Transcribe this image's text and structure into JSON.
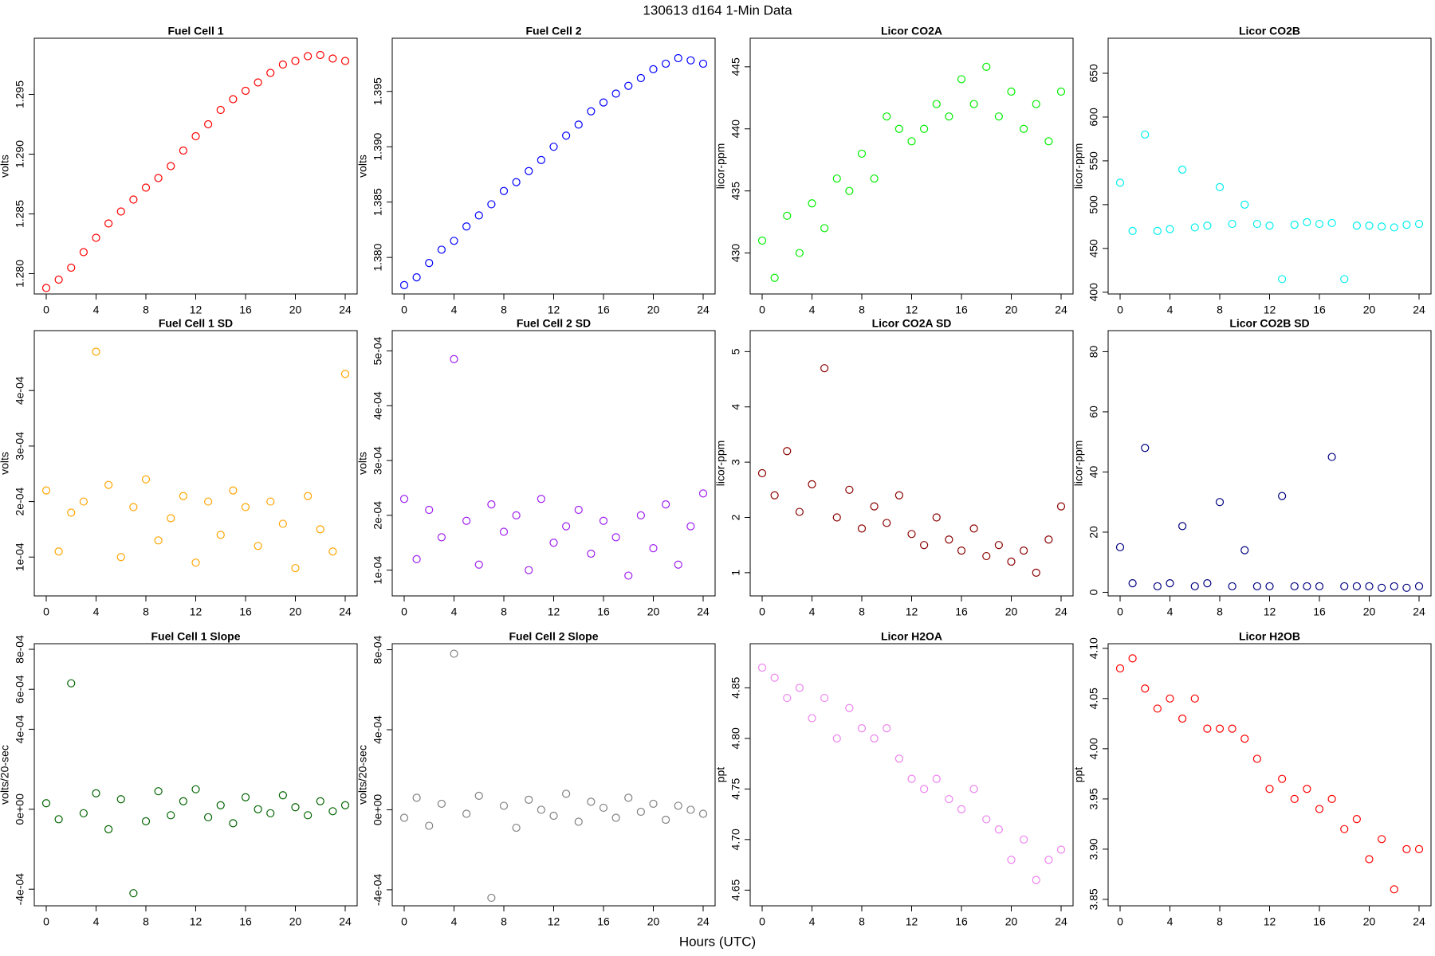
{
  "title": "130613   d164   1-Min Data",
  "x_label": "Hours (UTC)",
  "chart_data": [
    {
      "type": "scatter",
      "title": "Fuel Cell 1",
      "y_label": "volts",
      "color": "#ff0000",
      "x": [
        0,
        1,
        2,
        3,
        4,
        5,
        6,
        7,
        8,
        9,
        10,
        11,
        12,
        13,
        14,
        15,
        16,
        17,
        18,
        19,
        20,
        21,
        22,
        23,
        24
      ],
      "values": [
        1.2788,
        1.2795,
        1.2805,
        1.2818,
        1.283,
        1.2842,
        1.2852,
        1.2862,
        1.2872,
        1.288,
        1.289,
        1.2903,
        1.2915,
        1.2925,
        1.2937,
        1.2946,
        1.2953,
        1.296,
        1.2968,
        1.2975,
        1.2978,
        1.2982,
        1.2983,
        1.298,
        1.2978
      ],
      "xlim": [
        -0.96,
        24.96
      ],
      "xticks": [
        0,
        4,
        8,
        12,
        16,
        20,
        24
      ],
      "ylim": [
        1.2783,
        1.2997
      ],
      "yticks": [
        {
          "value": 1.28,
          "label": "1.280"
        },
        1.285,
        {
          "value": 1.29,
          "label": "1.290"
        },
        1.295
      ]
    },
    {
      "type": "scatter",
      "title": "Fuel Cell 2",
      "y_label": "volts",
      "color": "#0000ff",
      "x": [
        0,
        1,
        2,
        3,
        4,
        5,
        6,
        7,
        8,
        9,
        10,
        11,
        12,
        13,
        14,
        15,
        16,
        17,
        18,
        19,
        20,
        21,
        22,
        23,
        24
      ],
      "values": [
        1.3775,
        1.3782,
        1.3795,
        1.3807,
        1.3815,
        1.3828,
        1.3838,
        1.3848,
        1.386,
        1.3868,
        1.3878,
        1.3888,
        1.39,
        1.391,
        1.392,
        1.3932,
        1.394,
        1.3948,
        1.3955,
        1.3962,
        1.397,
        1.3975,
        1.398,
        1.3978,
        1.3975
      ],
      "xlim": [
        -0.96,
        24.96
      ],
      "xticks": [
        0,
        4,
        8,
        12,
        16,
        20,
        24
      ],
      "ylim": [
        1.3767,
        1.3998
      ],
      "yticks": [
        {
          "value": 1.38,
          "label": "1.380"
        },
        1.385,
        {
          "value": 1.39,
          "label": "1.390"
        },
        1.395
      ]
    },
    {
      "type": "scatter",
      "title": "Licor CO2A",
      "y_label": "licor-ppm",
      "color": "#00ee00",
      "x": [
        0,
        1,
        2,
        3,
        4,
        5,
        6,
        7,
        8,
        9,
        10,
        11,
        12,
        13,
        14,
        15,
        16,
        17,
        18,
        19,
        20,
        21,
        22,
        23,
        24
      ],
      "values": [
        431,
        428,
        433,
        430,
        434,
        432,
        436,
        435,
        438,
        436,
        441,
        440,
        439,
        440,
        442,
        441,
        444,
        442,
        445,
        441,
        443,
        440,
        442,
        439,
        443
      ],
      "xlim": [
        -0.96,
        24.96
      ],
      "xticks": [
        0,
        4,
        8,
        12,
        16,
        20,
        24
      ],
      "ylim": [
        426.7,
        447.3
      ],
      "yticks": [
        430,
        435,
        440,
        445
      ]
    },
    {
      "type": "scatter",
      "title": "Licor CO2B",
      "y_label": "licor-ppm",
      "color": "#00eeee",
      "x": [
        0,
        1,
        2,
        3,
        4,
        5,
        6,
        7,
        8,
        9,
        10,
        11,
        12,
        13,
        14,
        15,
        16,
        17,
        18,
        19,
        20,
        21,
        22,
        23,
        24
      ],
      "values": [
        525,
        470,
        580,
        470,
        472,
        540,
        474,
        476,
        520,
        478,
        500,
        478,
        476,
        415,
        477,
        480,
        478,
        479,
        415,
        476,
        476,
        475,
        474,
        477,
        478
      ],
      "xlim": [
        -0.96,
        24.96
      ],
      "xticks": [
        0,
        4,
        8,
        12,
        16,
        20,
        24
      ],
      "ylim": [
        398,
        690
      ],
      "yticks": [
        400,
        450,
        500,
        550,
        600,
        650
      ]
    },
    {
      "type": "scatter",
      "title": "Fuel Cell 1 SD",
      "y_label": "volts",
      "color": "#ffa500",
      "x": [
        0,
        1,
        2,
        3,
        4,
        5,
        6,
        7,
        8,
        9,
        10,
        11,
        12,
        13,
        14,
        15,
        16,
        17,
        18,
        19,
        20,
        21,
        22,
        23,
        24
      ],
      "values": [
        0.00022,
        0.00011,
        0.00018,
        0.0002,
        0.00047,
        0.00023,
        0.0001,
        0.00019,
        0.00024,
        0.00013,
        0.00017,
        0.00021,
        9e-05,
        0.0002,
        0.00014,
        0.00022,
        0.00019,
        0.00012,
        0.0002,
        0.00016,
        8e-05,
        0.00021,
        0.00015,
        0.00011,
        0.00043
      ],
      "xlim": [
        -0.96,
        24.96
      ],
      "xticks": [
        0,
        4,
        8,
        12,
        16,
        20,
        24
      ],
      "ylim": [
        3e-05,
        0.000508
      ],
      "yticks": [
        {
          "value": 0.0001,
          "label": "1e-04"
        },
        {
          "value": 0.0002,
          "label": "2e-04"
        },
        {
          "value": 0.0003,
          "label": "3e-04"
        },
        {
          "value": 0.0004,
          "label": "4e-04"
        }
      ]
    },
    {
      "type": "scatter",
      "title": "Fuel Cell 2 SD",
      "y_label": "volts",
      "color": "#a020f0",
      "x": [
        0,
        1,
        2,
        3,
        4,
        5,
        6,
        7,
        8,
        9,
        10,
        11,
        12,
        13,
        14,
        15,
        16,
        17,
        18,
        19,
        20,
        21,
        22,
        23,
        24
      ],
      "values": [
        0.00023,
        0.00012,
        0.00021,
        0.00016,
        0.000485,
        0.00019,
        0.00011,
        0.00022,
        0.00017,
        0.0002,
        0.0001,
        0.00023,
        0.00015,
        0.00018,
        0.00021,
        0.00013,
        0.00019,
        0.00016,
        9e-05,
        0.0002,
        0.00014,
        0.00022,
        0.00011,
        0.00018,
        0.00024
      ],
      "xlim": [
        -0.96,
        24.96
      ],
      "xticks": [
        0,
        4,
        8,
        12,
        16,
        20,
        24
      ],
      "ylim": [
        5.3e-05,
        0.000537
      ],
      "yticks": [
        {
          "value": 0.0001,
          "label": "1e-04"
        },
        {
          "value": 0.0002,
          "label": "2e-04"
        },
        {
          "value": 0.0003,
          "label": "3e-04"
        },
        {
          "value": 0.0004,
          "label": "4e-04"
        },
        {
          "value": 0.0005,
          "label": "5e-04"
        }
      ]
    },
    {
      "type": "scatter",
      "title": "Licor CO2A SD",
      "y_label": "licor-ppm",
      "color": "#8b0000",
      "x": [
        0,
        1,
        2,
        3,
        4,
        5,
        6,
        7,
        8,
        9,
        10,
        11,
        12,
        13,
        14,
        15,
        16,
        17,
        18,
        19,
        20,
        21,
        22,
        23,
        24
      ],
      "values": [
        2.8,
        2.4,
        3.2,
        2.1,
        2.6,
        4.7,
        2.0,
        2.5,
        1.8,
        2.2,
        1.9,
        2.4,
        1.7,
        1.5,
        2.0,
        1.6,
        1.4,
        1.8,
        1.3,
        1.5,
        1.2,
        1.4,
        1.0,
        1.6,
        2.2
      ],
      "xlim": [
        -0.96,
        24.96
      ],
      "xticks": [
        0,
        4,
        8,
        12,
        16,
        20,
        24
      ],
      "ylim": [
        0.58,
        5.38
      ],
      "yticks": [
        1,
        2,
        3,
        4,
        5
      ]
    },
    {
      "type": "scatter",
      "title": "Licor CO2B SD",
      "y_label": "licor-ppm",
      "color": "#000080",
      "x": [
        0,
        1,
        2,
        3,
        4,
        5,
        6,
        7,
        8,
        9,
        10,
        11,
        12,
        13,
        14,
        15,
        16,
        17,
        18,
        19,
        20,
        21,
        22,
        23,
        24
      ],
      "values": [
        15,
        3,
        48,
        2,
        3,
        22,
        2,
        3,
        30,
        2,
        14,
        2,
        2,
        32,
        2,
        2,
        2,
        45,
        2,
        2,
        2,
        1.5,
        2,
        1.5,
        2
      ],
      "xlim": [
        -0.96,
        24.96
      ],
      "xticks": [
        0,
        4,
        8,
        12,
        16,
        20,
        24
      ],
      "ylim": [
        -1.2,
        87
      ],
      "yticks": [
        0,
        20,
        40,
        60,
        80
      ]
    },
    {
      "type": "scatter",
      "title": "Fuel Cell 1 Slope",
      "y_label": "volts/20-sec",
      "color": "#006400",
      "x": [
        0,
        1,
        2,
        3,
        4,
        5,
        6,
        7,
        8,
        9,
        10,
        11,
        12,
        13,
        14,
        15,
        16,
        17,
        18,
        19,
        20,
        21,
        22,
        23,
        24
      ],
      "values": [
        3e-05,
        -5e-05,
        0.00063,
        -2e-05,
        8e-05,
        -0.0001,
        5e-05,
        -0.00042,
        -6e-05,
        9e-05,
        -3e-05,
        4e-05,
        0.0001,
        -4e-05,
        2e-05,
        -7e-05,
        6e-05,
        0,
        -2e-05,
        7e-05,
        1e-05,
        -3e-05,
        4e-05,
        -1e-05,
        2e-05
      ],
      "xlim": [
        -0.96,
        24.96
      ],
      "xticks": [
        0,
        4,
        8,
        12,
        16,
        20,
        24
      ],
      "ylim": [
        -0.000483,
        0.000828
      ],
      "yticks": [
        {
          "value": -0.0004,
          "label": "-4e-04"
        },
        {
          "value": 0,
          "label": "0e+00"
        },
        {
          "value": 0.0004,
          "label": "4e-04"
        },
        {
          "value": 0.0006,
          "label": "6e-04"
        },
        {
          "value": 0.0008,
          "label": "8e-04"
        }
      ]
    },
    {
      "type": "scatter",
      "title": "Fuel Cell 2 Slope",
      "y_label": "volts/20-sec",
      "color": "#808080",
      "x": [
        0,
        1,
        2,
        3,
        4,
        5,
        6,
        7,
        8,
        9,
        10,
        11,
        12,
        13,
        14,
        15,
        16,
        17,
        18,
        19,
        20,
        21,
        22,
        23,
        24
      ],
      "values": [
        -4e-05,
        6e-05,
        -8e-05,
        3e-05,
        0.00078,
        -2e-05,
        7e-05,
        -0.00044,
        2e-05,
        -9e-05,
        5e-05,
        0,
        -3e-05,
        8e-05,
        -6e-05,
        4e-05,
        1e-05,
        -4e-05,
        6e-05,
        -1e-05,
        3e-05,
        -5e-05,
        2e-05,
        0,
        -2e-05
      ],
      "xlim": [
        -0.96,
        24.96
      ],
      "xticks": [
        0,
        4,
        8,
        12,
        16,
        20,
        24
      ],
      "ylim": [
        -0.00048,
        0.00083
      ],
      "yticks": [
        {
          "value": -0.0004,
          "label": "-4e-04"
        },
        {
          "value": 0,
          "label": "0e+00"
        },
        {
          "value": 0.0004,
          "label": "4e-04"
        },
        {
          "value": 0.0008,
          "label": "8e-04"
        }
      ]
    },
    {
      "type": "scatter",
      "title": "Licor H2OA",
      "y_label": "ppt",
      "color": "#ee82ee",
      "x": [
        0,
        1,
        2,
        3,
        4,
        5,
        6,
        7,
        8,
        9,
        10,
        11,
        12,
        13,
        14,
        15,
        16,
        17,
        18,
        19,
        20,
        21,
        22,
        23,
        24
      ],
      "values": [
        4.87,
        4.86,
        4.84,
        4.85,
        4.82,
        4.84,
        4.8,
        4.83,
        4.81,
        4.8,
        4.81,
        4.78,
        4.76,
        4.75,
        4.76,
        4.74,
        4.73,
        4.75,
        4.72,
        4.71,
        4.68,
        4.7,
        4.66,
        4.68,
        4.69
      ],
      "xlim": [
        -0.96,
        24.96
      ],
      "xticks": [
        0,
        4,
        8,
        12,
        16,
        20,
        24
      ],
      "ylim": [
        4.6345,
        4.8936
      ],
      "yticks": [
        4.65,
        {
          "value": 4.7,
          "label": "4.70"
        },
        4.75,
        {
          "value": 4.8,
          "label": "4.80"
        },
        4.85
      ]
    },
    {
      "type": "scatter",
      "title": "Licor H2OB",
      "y_label": "ppt",
      "color": "#ff0000",
      "x": [
        0,
        1,
        2,
        3,
        4,
        5,
        6,
        7,
        8,
        9,
        10,
        11,
        12,
        13,
        14,
        15,
        16,
        17,
        18,
        19,
        20,
        21,
        22,
        23,
        24
      ],
      "values": [
        4.08,
        4.09,
        4.06,
        4.04,
        4.05,
        4.03,
        4.05,
        4.02,
        4.02,
        4.02,
        4.01,
        3.99,
        3.96,
        3.97,
        3.95,
        3.96,
        3.94,
        3.95,
        3.92,
        3.93,
        3.89,
        3.91,
        3.86,
        3.9,
        3.9
      ],
      "xlim": [
        -0.96,
        24.96
      ],
      "xticks": [
        0,
        4,
        8,
        12,
        16,
        20,
        24
      ],
      "ylim": [
        3.8436,
        4.1046
      ],
      "yticks": [
        3.85,
        {
          "value": 3.9,
          "label": "3.90"
        },
        3.95,
        {
          "value": 4,
          "label": "4.00"
        },
        4.05,
        {
          "value": 4.1,
          "label": "4.10"
        }
      ]
    }
  ]
}
